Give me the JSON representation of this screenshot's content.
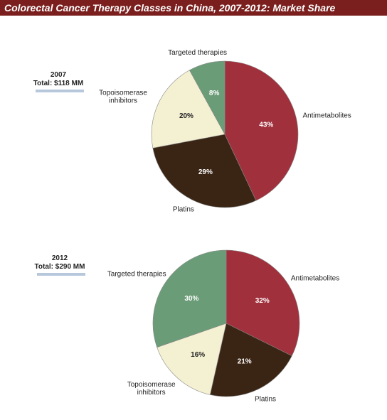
{
  "title": "Colorectal Cancer Therapy Classes in China, 2007-2012: Market Share",
  "chart_data": [
    {
      "type": "pie",
      "year": "2007",
      "total": "Total: $118 MM",
      "categories": [
        "Antimetabolites",
        "Platins",
        "Topoisomerase inhibitors",
        "Targeted therapies"
      ],
      "values": [
        43,
        29,
        20,
        8
      ],
      "value_labels": [
        "43%",
        "29%",
        "20%",
        "8%"
      ],
      "colors": [
        "#a0303c",
        "#3a2515",
        "#f4f0d2",
        "#6b9c78"
      ]
    },
    {
      "type": "pie",
      "year": "2012",
      "total": "Total: $290 MM",
      "categories": [
        "Antimetabolites",
        "Platins",
        "Topoisomerase inhibitors",
        "Targeted therapies"
      ],
      "values": [
        32,
        21,
        16,
        30
      ],
      "value_labels": [
        "32%",
        "21%",
        "16%",
        "30%"
      ],
      "colors": [
        "#a0303c",
        "#3a2515",
        "#f4f0d2",
        "#6b9c78"
      ]
    }
  ]
}
